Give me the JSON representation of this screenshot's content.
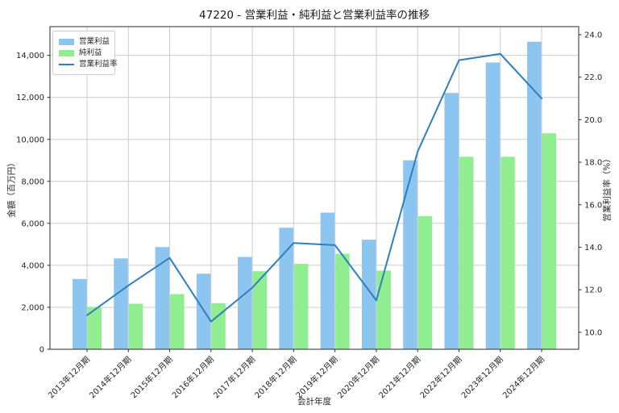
{
  "figure": {
    "title": "47220 - 営業利益・純利益と営業利益率の推移",
    "xlabel": "会計年度",
    "ylabel_left": "金額（百万円）",
    "ylabel_right": "営業利益率（%）"
  },
  "legend": {
    "items": [
      {
        "label": "営業利益",
        "swatch": "patch",
        "color": "#8CC6F0"
      },
      {
        "label": "純利益",
        "swatch": "patch",
        "color": "#90EE90"
      },
      {
        "label": "営業利益率",
        "swatch": "line",
        "color": "#2E7FBE"
      }
    ]
  },
  "chart_data": {
    "type": "bar+line",
    "title": "47220 - 営業利益・純利益と営業利益率の推移",
    "xlabel": "会計年度",
    "ylabel_left": "金額（百万円）",
    "ylabel_right": "営業利益率（%）",
    "categories": [
      "2013年12月期",
      "2014年12月期",
      "2015年12月期",
      "2016年12月期",
      "2017年12月期",
      "2018年12月期",
      "2019年12月期",
      "2020年12月期",
      "2021年12月期",
      "2022年12月期",
      "2023年12月期",
      "2024年12月期"
    ],
    "series": [
      {
        "name": "営業利益",
        "kind": "bar",
        "axis": "left",
        "color": "#8CC6F0",
        "values": [
          3350,
          4330,
          4870,
          3600,
          4400,
          5790,
          6510,
          5220,
          9000,
          12210,
          13660,
          14650
        ]
      },
      {
        "name": "純利益",
        "kind": "bar",
        "axis": "left",
        "color": "#90EE90",
        "values": [
          2020,
          2170,
          2630,
          2190,
          3720,
          4070,
          4550,
          3750,
          6340,
          9170,
          9170,
          10290
        ]
      },
      {
        "name": "営業利益率",
        "kind": "line",
        "axis": "right",
        "color": "#2E7FBE",
        "values": [
          10.8,
          12.2,
          13.5,
          10.5,
          12.1,
          14.2,
          14.1,
          11.5,
          18.5,
          22.8,
          23.1,
          21.0
        ]
      }
    ],
    "ylim_left": [
      0,
      15370
    ],
    "ylim_right": [
      9.2,
      24.38
    ],
    "yticks_left": [
      0,
      2000,
      4000,
      6000,
      8000,
      10000,
      12000,
      14000
    ],
    "yticks_right": [
      10,
      12,
      14,
      16,
      18,
      20,
      22,
      24
    ],
    "grid": true,
    "legend_position": "upper left"
  },
  "colors": {
    "grid": "#cccccc",
    "spine": "#2b2b2b",
    "tick_text": "#262626",
    "background": "#ffffff"
  }
}
